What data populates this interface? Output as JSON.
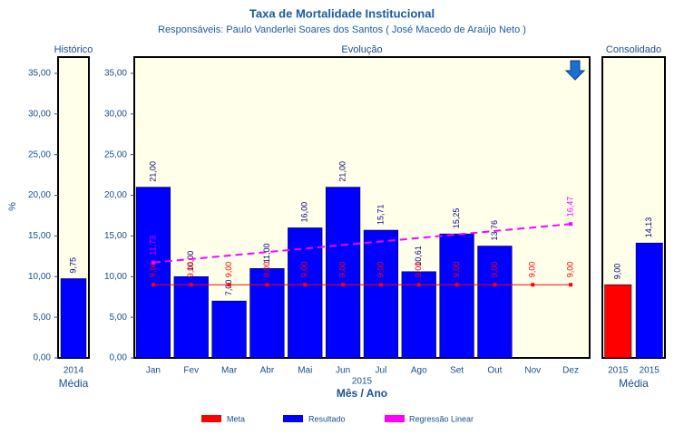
{
  "title": "Taxa de Mortalidade Institucional",
  "subtitle": "Responsáveis: Paulo Vanderlei Soares dos Santos ( José Macedo de Araújo Neto )",
  "chart_data": [
    {
      "type": "bar",
      "title": "Histórico",
      "ylabel": "%",
      "categories": [
        "2014"
      ],
      "xlabel": "Média",
      "values": [
        9.75
      ],
      "value_labels": [
        "9,75"
      ],
      "color": "#0000ff",
      "ylim": [
        0,
        37
      ],
      "yticks": [
        {
          "value": 0,
          "label": "0,00"
        },
        {
          "value": 5,
          "label": "5,00"
        },
        {
          "value": 10,
          "label": "10,00"
        },
        {
          "value": 15,
          "label": "15,00"
        },
        {
          "value": 20,
          "label": "20,00"
        },
        {
          "value": 25,
          "label": "25,00"
        },
        {
          "value": 30,
          "label": "30,00"
        },
        {
          "value": 35,
          "label": "35,00"
        }
      ]
    },
    {
      "type": "combo",
      "title": "Evolução",
      "categories": [
        "Jan",
        "Fev",
        "Mar",
        "Abr",
        "Mai",
        "Jun",
        "Jul",
        "Ago",
        "Set",
        "Out",
        "Nov",
        "Dez"
      ],
      "xgroup": "2015",
      "xlabel": "Mês / Ano",
      "ylim": [
        0,
        37
      ],
      "yticks": [
        {
          "value": 0,
          "label": "0,00"
        },
        {
          "value": 5,
          "label": "5,00"
        },
        {
          "value": 10,
          "label": "10,00"
        },
        {
          "value": 15,
          "label": "15,00"
        },
        {
          "value": 20,
          "label": "20,00"
        },
        {
          "value": 25,
          "label": "25,00"
        },
        {
          "value": 30,
          "label": "30,00"
        },
        {
          "value": 35,
          "label": "35,00"
        }
      ],
      "series": [
        {
          "name": "Meta",
          "type": "line",
          "color": "#ff0000",
          "values": [
            9,
            9,
            9,
            9,
            9,
            9,
            9,
            9,
            9,
            9,
            9,
            9
          ],
          "value_labels": [
            "9,00",
            "9,00",
            "9,00",
            "9,00",
            "9,00",
            "9,00",
            "9,00",
            "9,00",
            "9,00",
            "9,00",
            "9,00",
            "9,00"
          ]
        },
        {
          "name": "Resultado",
          "type": "bar",
          "color": "#0000ff",
          "values": [
            21,
            10,
            7,
            11,
            16,
            21,
            15.71,
            10.61,
            15.25,
            13.76,
            null,
            null
          ],
          "value_labels": [
            "21,00",
            "10,00",
            "7,00",
            "11,00",
            "16,00",
            "21,00",
            "15,71",
            "10,61",
            "15,25",
            "13,76",
            null,
            null
          ]
        },
        {
          "name": "Regressão Linear",
          "type": "line",
          "dashed": true,
          "color": "#ff00ff",
          "values": [
            11.73,
            12.16,
            12.59,
            13.02,
            13.45,
            13.89,
            14.32,
            14.75,
            15.18,
            15.61,
            16.04,
            16.47
          ],
          "value_labels": [
            "11,73",
            null,
            null,
            null,
            null,
            null,
            null,
            null,
            null,
            null,
            null,
            "16,47"
          ]
        }
      ]
    },
    {
      "type": "bar",
      "title": "Consolidado",
      "categories": [
        "2015",
        "2015"
      ],
      "xlabel": "Média",
      "values": [
        9,
        14.13
      ],
      "value_labels": [
        "9,00",
        "14,13"
      ],
      "colors": [
        "#ff0000",
        "#0000ff"
      ],
      "ylim": [
        0,
        37
      ]
    }
  ]
}
